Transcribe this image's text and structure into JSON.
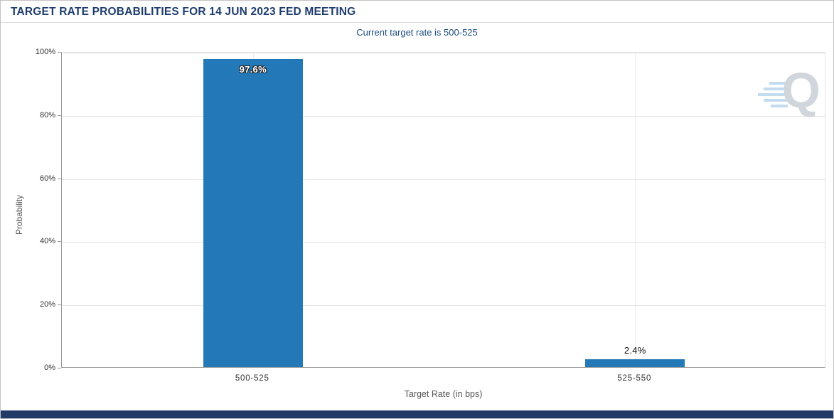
{
  "header": {
    "title": "TARGET RATE PROBABILITIES FOR 14 JUN 2023 FED MEETING",
    "subtitle": "Current target rate is 500-525"
  },
  "watermark": {
    "letter": "Q"
  },
  "colors": {
    "bar": "#2379b8",
    "title_text": "#1e3c6e",
    "subtitle_text": "#1f4e82",
    "footer": "#223a67"
  },
  "chart_data": {
    "type": "bar",
    "title": "TARGET RATE PROBABILITIES FOR 14 JUN 2023 FED MEETING",
    "subtitle": "Current target rate is 500-525",
    "categories": [
      "500-525",
      "525-550"
    ],
    "values": [
      97.6,
      2.4
    ],
    "value_labels": [
      "97.6%",
      "2.4%"
    ],
    "xlabel": "Target Rate (in bps)",
    "ylabel": "Probability",
    "ylim": [
      0,
      100
    ],
    "yticks": [
      "0%",
      "20%",
      "40%",
      "60%",
      "80%",
      "100%"
    ],
    "grid": "horizontal",
    "legend": "none",
    "bar_color": "#2379b8"
  }
}
